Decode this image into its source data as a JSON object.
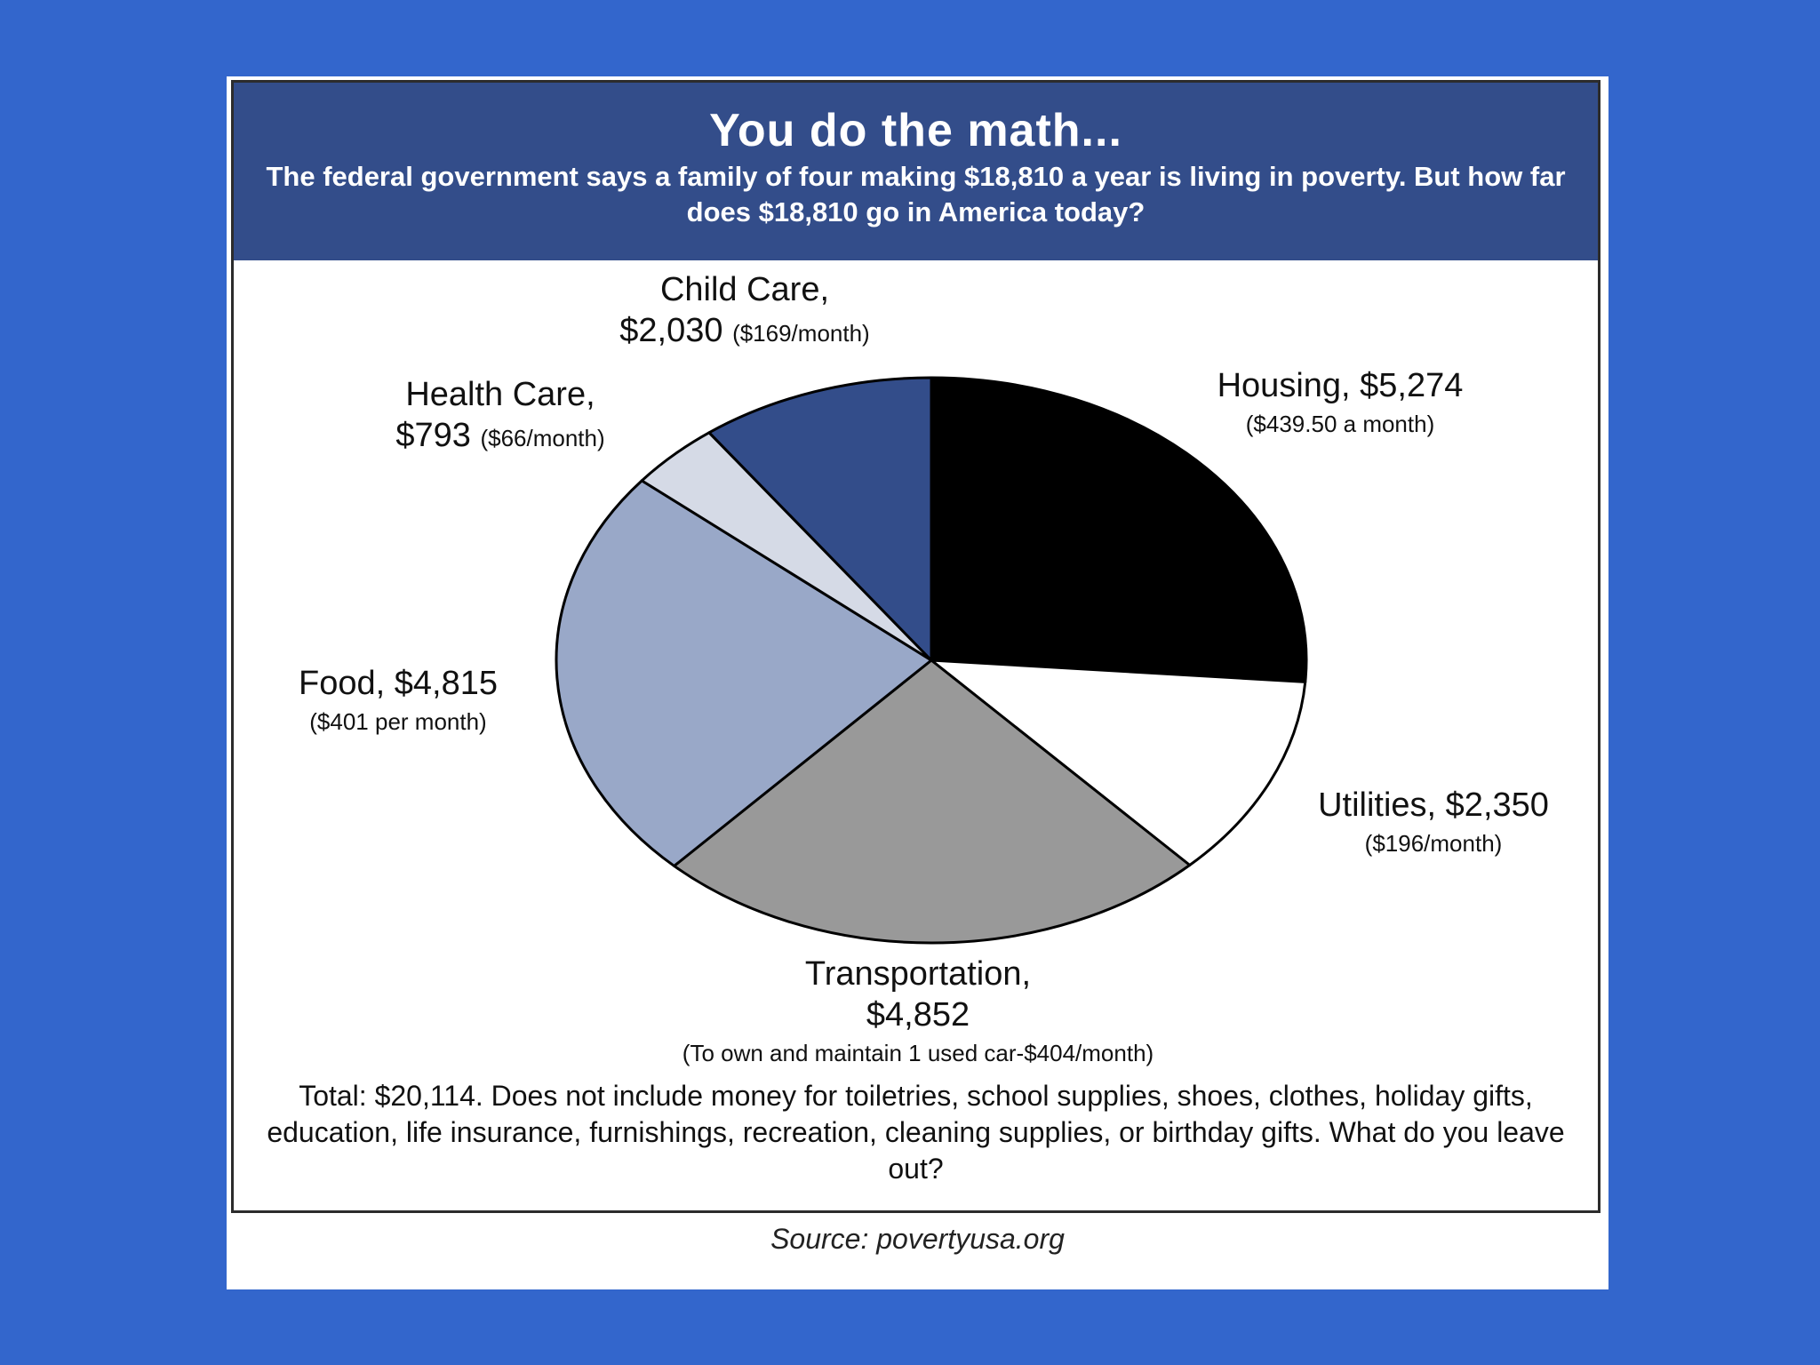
{
  "header": {
    "title": "You do the math...",
    "subtitle": "The federal government says a family of four making $18,810 a year is living in poverty. But how far does $18,810 go in America today?"
  },
  "labels": {
    "child_care": {
      "line1": "Child Care,",
      "amount": "$2,030",
      "detail": "($169/month)"
    },
    "health_care": {
      "line1": "Health Care,",
      "amount": "$793",
      "detail": "($66/month)"
    },
    "housing": {
      "line1": "Housing, $5,274",
      "detail": "($439.50 a month)"
    },
    "food": {
      "line1": "Food, $4,815",
      "detail": "($401 per month)"
    },
    "utilities": {
      "line1": "Utilities, $2,350",
      "detail": "($196/month)"
    },
    "transportation": {
      "line1": "Transportation,",
      "amount": "$4,852",
      "detail": "(To own and maintain 1 used car-$404/month)"
    }
  },
  "footer": "Total: $20,114. Does not include money for toiletries, school supplies, shoes, clothes, holiday gifts, education, life insurance, furnishings, recreation, cleaning supplies, or birthday gifts. What do you leave out?",
  "source": "Source: povertyusa.org",
  "chart_data": {
    "type": "pie",
    "slices": [
      {
        "label": "Housing",
        "value": 5274,
        "color": "#000000"
      },
      {
        "label": "Utilities",
        "value": 2350,
        "color": "#ffffff"
      },
      {
        "label": "Transportation",
        "value": 4852,
        "color": "#999999"
      },
      {
        "label": "Food",
        "value": 4815,
        "color": "#99a8c8"
      },
      {
        "label": "Health Care",
        "value": 793,
        "color": "#d5dae6"
      },
      {
        "label": "Child Care",
        "value": 2030,
        "color": "#334d8a"
      }
    ],
    "total": 20114
  }
}
